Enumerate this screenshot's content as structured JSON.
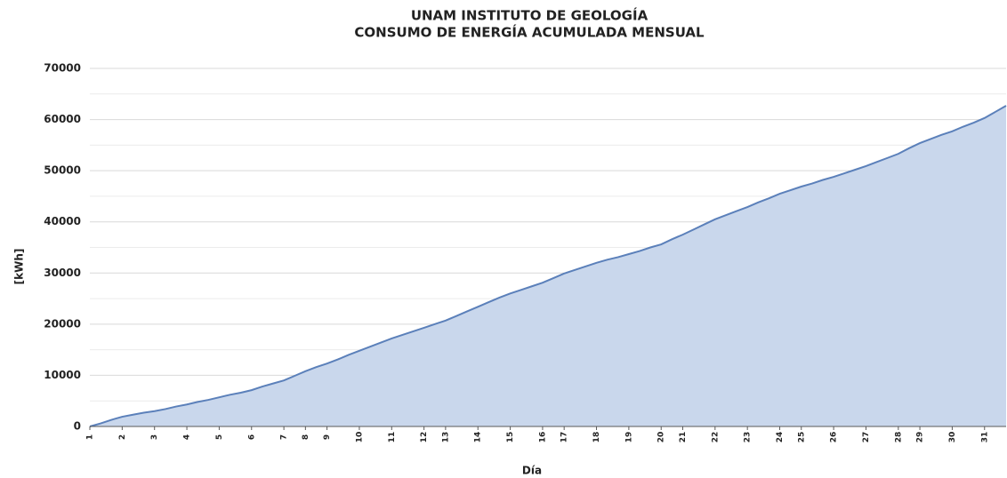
{
  "chart_data": {
    "type": "area",
    "title": "UNAM INSTITUTO DE GEOLOGÍA",
    "subtitle": "CONSUMO DE ENERGÍA ACUMULADA MENSUAL",
    "x_label": "Día",
    "y_label": "[kWh]",
    "categories": [
      "1",
      null,
      null,
      "2",
      null,
      null,
      "3",
      null,
      null,
      "4",
      null,
      null,
      "5",
      null,
      null,
      "6",
      null,
      null,
      "7",
      null,
      "8",
      null,
      "9",
      null,
      null,
      "10",
      null,
      null,
      "11",
      null,
      null,
      "12",
      null,
      "13",
      null,
      null,
      "14",
      null,
      null,
      "15",
      null,
      null,
      "16",
      null,
      "17",
      null,
      null,
      "18",
      null,
      null,
      "19",
      null,
      null,
      "20",
      null,
      "21",
      null,
      null,
      "22",
      null,
      null,
      "23",
      null,
      null,
      "24",
      null,
      "25",
      null,
      null,
      "26",
      null,
      null,
      "27",
      null,
      null,
      "28",
      null,
      "29",
      null,
      null,
      "30",
      null,
      null,
      "31",
      null,
      null
    ],
    "values": [
      0,
      600,
      1300,
      1900,
      2300,
      2700,
      3000,
      3400,
      3900,
      4300,
      4800,
      5200,
      5700,
      6200,
      6600,
      7100,
      7800,
      8400,
      9000,
      9900,
      10800,
      11600,
      12300,
      13100,
      14000,
      14800,
      15600,
      16400,
      17200,
      17900,
      18600,
      19300,
      20000,
      20700,
      21600,
      22500,
      23400,
      24300,
      25200,
      26000,
      26700,
      27400,
      28100,
      29000,
      29900,
      30600,
      31300,
      32000,
      32600,
      33100,
      33700,
      34300,
      35000,
      35600,
      36600,
      37500,
      38500,
      39500,
      40500,
      41300,
      42100,
      42900,
      43800,
      44600,
      45500,
      46200,
      46900,
      47500,
      48200,
      48800,
      49500,
      50200,
      50900,
      51700,
      52500,
      53300,
      54400,
      55400,
      56200,
      57000,
      57700,
      58600,
      59400,
      60300,
      61500,
      62700
    ],
    "color": "#5b80ba",
    "fill": "#c9d7ec",
    "ylim": [
      0,
      70000
    ],
    "yticks": [
      0,
      10000,
      20000,
      30000,
      40000,
      50000,
      60000,
      70000
    ],
    "minor_yticks": [
      5000,
      15000,
      25000,
      35000,
      45000,
      55000,
      65000
    ],
    "grid": true
  }
}
